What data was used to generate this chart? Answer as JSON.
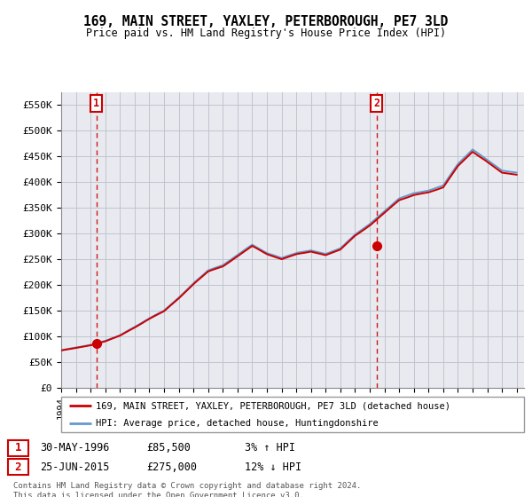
{
  "title": "169, MAIN STREET, YAXLEY, PETERBOROUGH, PE7 3LD",
  "subtitle": "Price paid vs. HM Land Registry's House Price Index (HPI)",
  "ylabel_ticks": [
    "£0",
    "£50K",
    "£100K",
    "£150K",
    "£200K",
    "£250K",
    "£300K",
    "£350K",
    "£400K",
    "£450K",
    "£500K",
    "£550K"
  ],
  "ytick_values": [
    0,
    50000,
    100000,
    150000,
    200000,
    250000,
    300000,
    350000,
    400000,
    450000,
    500000,
    550000
  ],
  "ylim": [
    0,
    575000
  ],
  "xlim_start": 1994.0,
  "xlim_end": 2025.5,
  "sale1_date": 1996.41,
  "sale1_price": 85500,
  "sale1_label": "1",
  "sale2_date": 2015.48,
  "sale2_price": 275000,
  "sale2_label": "2",
  "legend_line1": "169, MAIN STREET, YAXLEY, PETERBOROUGH, PE7 3LD (detached house)",
  "legend_line2": "HPI: Average price, detached house, Huntingdonshire",
  "table_row1": [
    "1",
    "30-MAY-1996",
    "£85,500",
    "3% ↑ HPI"
  ],
  "table_row2": [
    "2",
    "25-JUN-2015",
    "£275,000",
    "12% ↓ HPI"
  ],
  "footer": "Contains HM Land Registry data © Crown copyright and database right 2024.\nThis data is licensed under the Open Government Licence v3.0.",
  "line_color_red": "#cc0000",
  "line_color_blue": "#6699cc",
  "marker_color_red": "#cc0000",
  "vline_color": "#cc0000",
  "hpi_years": [
    1994,
    1995,
    1996,
    1997,
    1998,
    1999,
    2000,
    2001,
    2002,
    2003,
    2004,
    2005,
    2006,
    2007,
    2008,
    2009,
    2010,
    2011,
    2012,
    2013,
    2014,
    2015,
    2016,
    2017,
    2018,
    2019,
    2020,
    2021,
    2022,
    2023,
    2024,
    2025
  ],
  "hpi_prices": [
    73000,
    78000,
    83000,
    91000,
    102000,
    118000,
    135000,
    150000,
    175000,
    203000,
    228000,
    238000,
    258000,
    278000,
    262000,
    252000,
    262000,
    267000,
    260000,
    271000,
    298000,
    318000,
    343000,
    368000,
    378000,
    383000,
    393000,
    435000,
    463000,
    443000,
    422000,
    418000
  ]
}
